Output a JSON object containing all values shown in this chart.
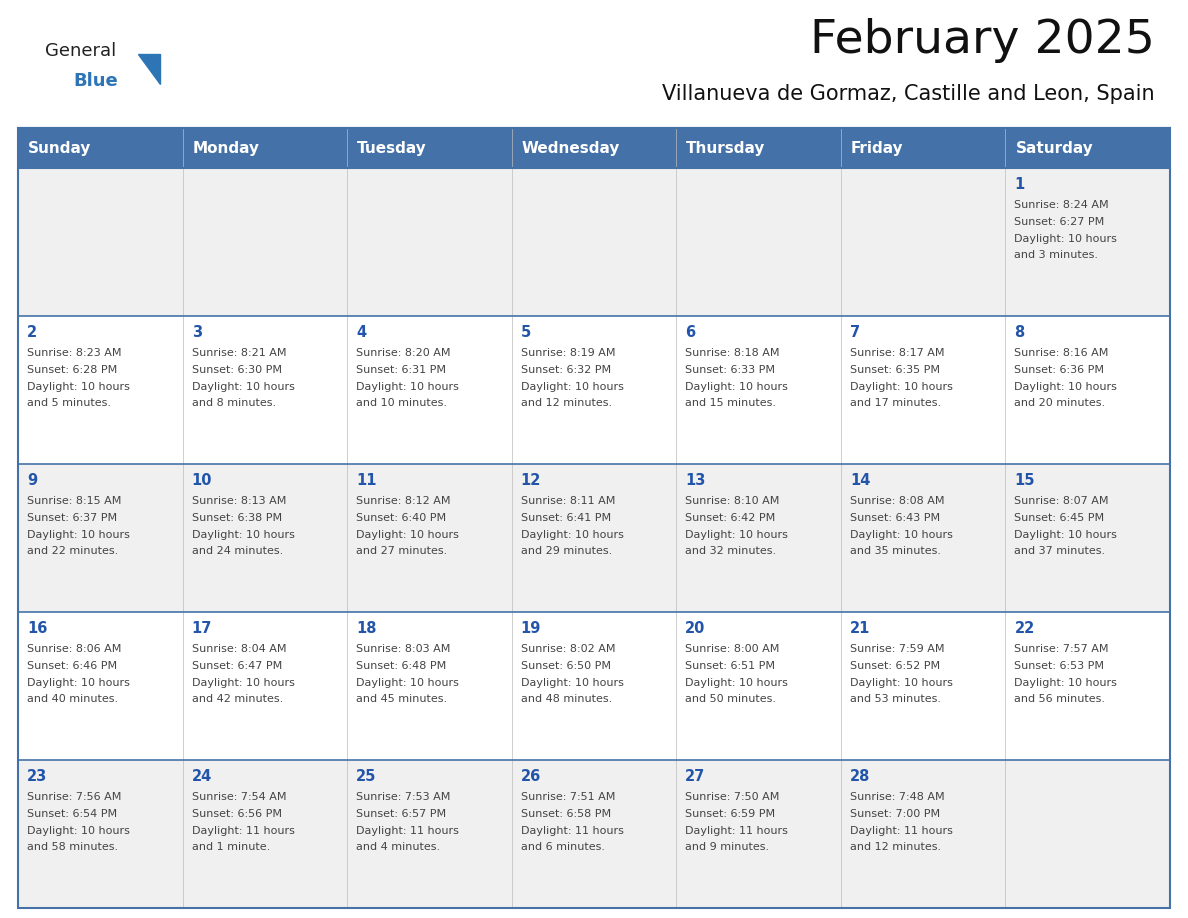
{
  "title": "February 2025",
  "subtitle": "Villanueva de Gormaz, Castille and Leon, Spain",
  "header_bg": "#4472a8",
  "header_text": "#ffffff",
  "header_days": [
    "Sunday",
    "Monday",
    "Tuesday",
    "Wednesday",
    "Thursday",
    "Friday",
    "Saturday"
  ],
  "row_bg_light": "#f0f0f0",
  "row_bg_white": "#ffffff",
  "cell_text_color": "#444444",
  "day_number_color": "#2255aa",
  "border_color": "#4472a8",
  "logo_general_color": "#222222",
  "logo_blue_color": "#2e75b6",
  "calendar_data": [
    [
      null,
      null,
      null,
      null,
      null,
      null,
      {
        "day": 1,
        "sunrise": "8:24 AM",
        "sunset": "6:27 PM",
        "daylight": "10 hours and 3 minutes."
      }
    ],
    [
      {
        "day": 2,
        "sunrise": "8:23 AM",
        "sunset": "6:28 PM",
        "daylight": "10 hours and 5 minutes."
      },
      {
        "day": 3,
        "sunrise": "8:21 AM",
        "sunset": "6:30 PM",
        "daylight": "10 hours and 8 minutes."
      },
      {
        "day": 4,
        "sunrise": "8:20 AM",
        "sunset": "6:31 PM",
        "daylight": "10 hours and 10 minutes."
      },
      {
        "day": 5,
        "sunrise": "8:19 AM",
        "sunset": "6:32 PM",
        "daylight": "10 hours and 12 minutes."
      },
      {
        "day": 6,
        "sunrise": "8:18 AM",
        "sunset": "6:33 PM",
        "daylight": "10 hours and 15 minutes."
      },
      {
        "day": 7,
        "sunrise": "8:17 AM",
        "sunset": "6:35 PM",
        "daylight": "10 hours and 17 minutes."
      },
      {
        "day": 8,
        "sunrise": "8:16 AM",
        "sunset": "6:36 PM",
        "daylight": "10 hours and 20 minutes."
      }
    ],
    [
      {
        "day": 9,
        "sunrise": "8:15 AM",
        "sunset": "6:37 PM",
        "daylight": "10 hours and 22 minutes."
      },
      {
        "day": 10,
        "sunrise": "8:13 AM",
        "sunset": "6:38 PM",
        "daylight": "10 hours and 24 minutes."
      },
      {
        "day": 11,
        "sunrise": "8:12 AM",
        "sunset": "6:40 PM",
        "daylight": "10 hours and 27 minutes."
      },
      {
        "day": 12,
        "sunrise": "8:11 AM",
        "sunset": "6:41 PM",
        "daylight": "10 hours and 29 minutes."
      },
      {
        "day": 13,
        "sunrise": "8:10 AM",
        "sunset": "6:42 PM",
        "daylight": "10 hours and 32 minutes."
      },
      {
        "day": 14,
        "sunrise": "8:08 AM",
        "sunset": "6:43 PM",
        "daylight": "10 hours and 35 minutes."
      },
      {
        "day": 15,
        "sunrise": "8:07 AM",
        "sunset": "6:45 PM",
        "daylight": "10 hours and 37 minutes."
      }
    ],
    [
      {
        "day": 16,
        "sunrise": "8:06 AM",
        "sunset": "6:46 PM",
        "daylight": "10 hours and 40 minutes."
      },
      {
        "day": 17,
        "sunrise": "8:04 AM",
        "sunset": "6:47 PM",
        "daylight": "10 hours and 42 minutes."
      },
      {
        "day": 18,
        "sunrise": "8:03 AM",
        "sunset": "6:48 PM",
        "daylight": "10 hours and 45 minutes."
      },
      {
        "day": 19,
        "sunrise": "8:02 AM",
        "sunset": "6:50 PM",
        "daylight": "10 hours and 48 minutes."
      },
      {
        "day": 20,
        "sunrise": "8:00 AM",
        "sunset": "6:51 PM",
        "daylight": "10 hours and 50 minutes."
      },
      {
        "day": 21,
        "sunrise": "7:59 AM",
        "sunset": "6:52 PM",
        "daylight": "10 hours and 53 minutes."
      },
      {
        "day": 22,
        "sunrise": "7:57 AM",
        "sunset": "6:53 PM",
        "daylight": "10 hours and 56 minutes."
      }
    ],
    [
      {
        "day": 23,
        "sunrise": "7:56 AM",
        "sunset": "6:54 PM",
        "daylight": "10 hours and 58 minutes."
      },
      {
        "day": 24,
        "sunrise": "7:54 AM",
        "sunset": "6:56 PM",
        "daylight": "11 hours and 1 minute."
      },
      {
        "day": 25,
        "sunrise": "7:53 AM",
        "sunset": "6:57 PM",
        "daylight": "11 hours and 4 minutes."
      },
      {
        "day": 26,
        "sunrise": "7:51 AM",
        "sunset": "6:58 PM",
        "daylight": "11 hours and 6 minutes."
      },
      {
        "day": 27,
        "sunrise": "7:50 AM",
        "sunset": "6:59 PM",
        "daylight": "11 hours and 9 minutes."
      },
      {
        "day": 28,
        "sunrise": "7:48 AM",
        "sunset": "7:00 PM",
        "daylight": "11 hours and 12 minutes."
      },
      null
    ]
  ]
}
